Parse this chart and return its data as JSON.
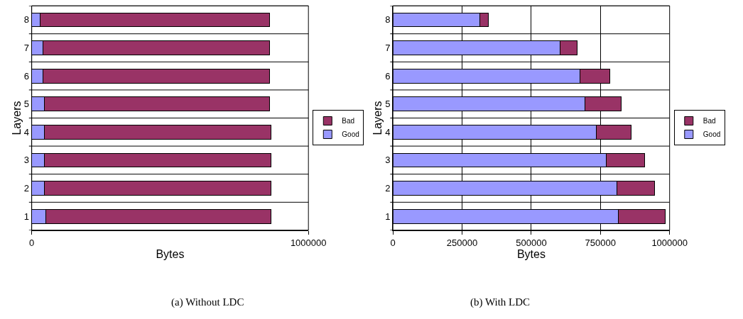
{
  "chart_data": [
    {
      "type": "bar",
      "orientation": "horizontal",
      "stacked": true,
      "xlabel": "Bytes",
      "ylabel": "Layers",
      "categories": [
        "8",
        "7",
        "6",
        "5",
        "4",
        "3",
        "2",
        "1"
      ],
      "series": [
        {
          "name": "Good",
          "color": "#9999ff",
          "values": [
            30000,
            40000,
            40000,
            45000,
            45000,
            45000,
            45000,
            50000
          ]
        },
        {
          "name": "Bad",
          "color": "#993366",
          "values": [
            830000,
            820000,
            820000,
            815000,
            820000,
            820000,
            820000,
            815000
          ]
        }
      ],
      "xlim": [
        0,
        1000000
      ],
      "xticks": [
        0,
        1000000
      ],
      "grid": "y",
      "legend": "right",
      "annotations": [
        "(a) Without LDC"
      ]
    },
    {
      "type": "bar",
      "orientation": "horizontal",
      "stacked": true,
      "xlabel": "Bytes",
      "ylabel": "Layers",
      "categories": [
        "8",
        "7",
        "6",
        "5",
        "4",
        "3",
        "2",
        "1"
      ],
      "series": [
        {
          "name": "Good",
          "color": "#9999ff",
          "values": [
            315000,
            605000,
            675000,
            695000,
            735000,
            770000,
            810000,
            815000
          ]
        },
        {
          "name": "Bad",
          "color": "#993366",
          "values": [
            30000,
            60000,
            110000,
            130000,
            125000,
            140000,
            135000,
            170000
          ]
        }
      ],
      "xlim": [
        0,
        1000000
      ],
      "xticks": [
        0,
        250000,
        500000,
        750000,
        1000000
      ],
      "grid": true,
      "legend": "right",
      "annotations": [
        "(b) With LDC"
      ]
    }
  ]
}
